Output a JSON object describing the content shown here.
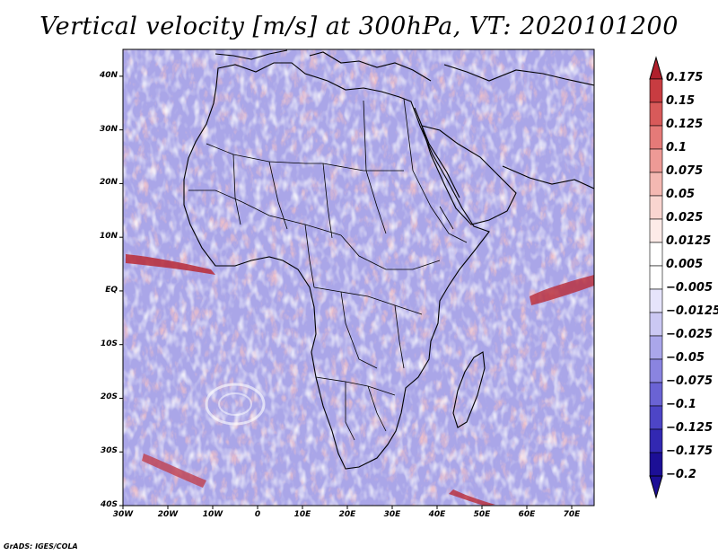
{
  "title": "Vertical velocity [m/s] at 300hPa, VT: 2020101200",
  "footer": "GrADS: IGES/COLA",
  "chart_data": {
    "type": "heatmap",
    "title": "Vertical velocity [m/s] at 300hPa, VT: 2020101200",
    "x_ticks": [
      "30W",
      "20W",
      "10W",
      "0",
      "10E",
      "20E",
      "30E",
      "40E",
      "50E",
      "60E",
      "70E"
    ],
    "x_range": [
      -30,
      75
    ],
    "y_ticks": [
      "40S",
      "30S",
      "20S",
      "10S",
      "EQ",
      "10N",
      "20N",
      "30N",
      "40N"
    ],
    "y_range": [
      -40,
      45
    ],
    "colorbar": {
      "labels": [
        "0.175",
        "0.15",
        "0.125",
        "0.1",
        "0.075",
        "0.05",
        "0.025",
        "0.0125",
        "0.005",
        "-0.005",
        "-0.0125",
        "-0.025",
        "-0.05",
        "-0.075",
        "-0.1",
        "-0.125",
        "-0.175",
        "-0.2"
      ],
      "colors": [
        "#b0202c",
        "#c83c41",
        "#d85a5a",
        "#e57a78",
        "#ee9a96",
        "#f4b8b2",
        "#f9d5d0",
        "#fdebe8",
        "#ffffff",
        "#ffffff",
        "#e6e4fb",
        "#cbc8f3",
        "#aaa6ea",
        "#8a84e0",
        "#6a63d4",
        "#4d45c6",
        "#3228b2",
        "#1c0f96"
      ]
    }
  }
}
